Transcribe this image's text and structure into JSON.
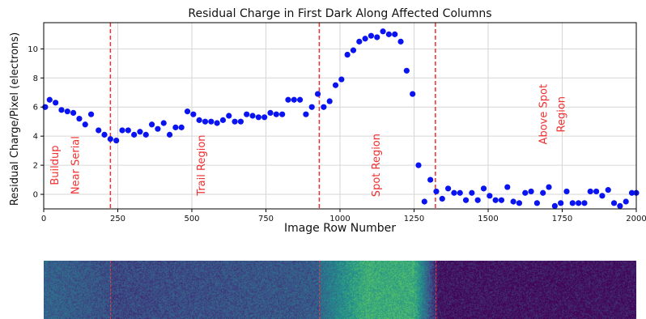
{
  "chart_data": {
    "type": "scatter",
    "title": "Residual Charge in First Dark Along Affected Columns",
    "xlabel": "Image Row Number",
    "ylabel": "Residual Charge/Pixel (electrons)",
    "xlim": [
      0,
      2000
    ],
    "ylim": [
      -1,
      11.8
    ],
    "xticks": [
      0,
      250,
      500,
      750,
      1000,
      1250,
      1500,
      1750,
      2000
    ],
    "yticks": [
      0,
      2,
      4,
      6,
      8,
      10
    ],
    "grid": true,
    "marker_color": "#0a14f0",
    "x": [
      5,
      20,
      40,
      60,
      80,
      100,
      120,
      140,
      160,
      185,
      205,
      225,
      245,
      265,
      285,
      305,
      325,
      345,
      365,
      385,
      405,
      425,
      445,
      465,
      485,
      505,
      525,
      545,
      565,
      585,
      605,
      625,
      645,
      665,
      685,
      705,
      725,
      745,
      765,
      785,
      805,
      825,
      845,
      865,
      885,
      905,
      925,
      945,
      965,
      985,
      1005,
      1025,
      1045,
      1065,
      1085,
      1105,
      1125,
      1145,
      1165,
      1185,
      1205,
      1225,
      1245,
      1265,
      1285,
      1305,
      1325,
      1345,
      1365,
      1385,
      1405,
      1425,
      1445,
      1465,
      1485,
      1505,
      1525,
      1545,
      1565,
      1585,
      1605,
      1625,
      1645,
      1665,
      1685,
      1705,
      1725,
      1745,
      1765,
      1785,
      1805,
      1825,
      1845,
      1865,
      1885,
      1905,
      1925,
      1945,
      1965,
      1985,
      2000
    ],
    "y": [
      6.0,
      6.5,
      6.3,
      5.8,
      5.7,
      5.6,
      5.2,
      4.8,
      5.5,
      4.4,
      4.1,
      3.8,
      3.7,
      4.4,
      4.4,
      4.1,
      4.3,
      4.1,
      4.8,
      4.5,
      4.9,
      4.1,
      4.6,
      4.6,
      5.7,
      5.5,
      5.1,
      5.0,
      5.0,
      4.9,
      5.1,
      5.4,
      5.0,
      5.0,
      5.5,
      5.4,
      5.3,
      5.3,
      5.6,
      5.5,
      5.5,
      6.5,
      6.5,
      6.5,
      5.5,
      6.0,
      6.9,
      6.0,
      6.4,
      7.5,
      7.9,
      9.6,
      9.9,
      10.5,
      10.7,
      10.9,
      10.8,
      11.2,
      11.0,
      11.0,
      10.5,
      8.5,
      6.9,
      2.0,
      -0.5,
      1.0,
      0.2,
      -0.3,
      0.4,
      0.1,
      0.1,
      -0.4,
      0.1,
      -0.4,
      0.4,
      -0.1,
      -0.4,
      -0.4,
      0.5,
      -0.5,
      -0.6,
      0.1,
      0.2,
      -0.6,
      0.1,
      0.5,
      -0.8,
      -0.6,
      0.2,
      -0.6,
      -0.6,
      -0.6,
      0.2,
      0.2,
      -0.1,
      0.3,
      -0.6,
      -0.8,
      -0.5,
      0.1,
      0.1
    ],
    "vlines": [
      225,
      930,
      1322
    ],
    "vline_color": "#f03030",
    "annotations": [
      {
        "text": "Buildup",
        "x": 35,
        "y": 2.0
      },
      {
        "text": "Near Serial",
        "x": 105,
        "y": 2.0
      },
      {
        "text": "Trail Region",
        "x": 530,
        "y": 2.0
      },
      {
        "text": "Spot Region",
        "x": 1120,
        "y": 2.0
      },
      {
        "text": "Above Spot",
        "x": 1685,
        "y": 5.5
      },
      {
        "text": "Region",
        "x": 1745,
        "y": 5.5
      }
    ],
    "annotation_color": "#f03030"
  }
}
